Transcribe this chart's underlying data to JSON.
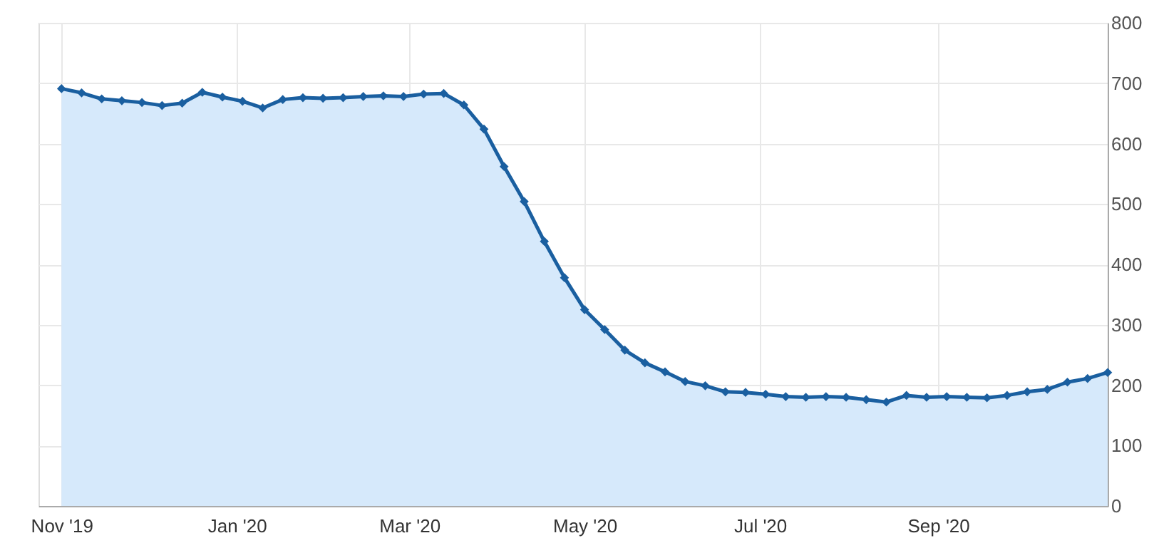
{
  "chart_data": {
    "type": "area",
    "x": [
      "2019-11-01",
      "2019-11-08",
      "2019-11-15",
      "2019-11-22",
      "2019-11-29",
      "2019-12-06",
      "2019-12-13",
      "2019-12-20",
      "2019-12-27",
      "2020-01-03",
      "2020-01-10",
      "2020-01-17",
      "2020-01-24",
      "2020-01-31",
      "2020-02-07",
      "2020-02-14",
      "2020-02-21",
      "2020-02-28",
      "2020-03-06",
      "2020-03-13",
      "2020-03-20",
      "2020-03-27",
      "2020-04-03",
      "2020-04-10",
      "2020-04-17",
      "2020-04-24",
      "2020-05-01",
      "2020-05-08",
      "2020-05-15",
      "2020-05-22",
      "2020-05-29",
      "2020-06-05",
      "2020-06-12",
      "2020-06-19",
      "2020-06-26",
      "2020-07-03",
      "2020-07-10",
      "2020-07-17",
      "2020-07-24",
      "2020-07-31",
      "2020-08-07",
      "2020-08-14",
      "2020-08-21",
      "2020-08-28",
      "2020-09-04",
      "2020-09-11",
      "2020-09-18",
      "2020-09-25",
      "2020-10-02",
      "2020-10-09",
      "2020-10-16",
      "2020-10-23",
      "2020-10-30"
    ],
    "series": [
      {
        "color": "#1a5fa0",
        "values": [
          691,
          684,
          674,
          671,
          668,
          663,
          667,
          685,
          677,
          670,
          659,
          673,
          676,
          675,
          676,
          678,
          679,
          678,
          682,
          683,
          664,
          624,
          562,
          504,
          438,
          378,
          325,
          292,
          258,
          237,
          222,
          206,
          199,
          189,
          188,
          185,
          181,
          180,
          181,
          180,
          176,
          172,
          183,
          180,
          181,
          180,
          179,
          183,
          189,
          193,
          205,
          211,
          221
        ]
      }
    ],
    "xlim": [
      "2019-10-24",
      "2020-10-30"
    ],
    "xticks": [
      {
        "value": "2019-11-01",
        "label": "Nov '19"
      },
      {
        "value": "2020-01-01",
        "label": "Jan '20"
      },
      {
        "value": "2020-03-01",
        "label": "Mar '20"
      },
      {
        "value": "2020-05-01",
        "label": "May '20"
      },
      {
        "value": "2020-07-01",
        "label": "Jul '20"
      },
      {
        "value": "2020-09-01",
        "label": "Sep '20"
      }
    ],
    "ylim": [
      0,
      800
    ],
    "yticks": [
      0,
      100,
      200,
      300,
      400,
      500,
      600,
      700,
      800
    ],
    "grid": true,
    "marker": "diamond",
    "legend": false
  }
}
